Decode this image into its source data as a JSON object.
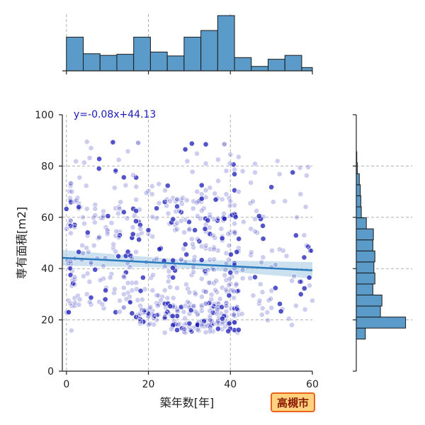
{
  "chart_data": {
    "type": "scatter",
    "xlabel": "築年数[年]",
    "ylabel": "専有面積[m2]",
    "xlim": [
      -1,
      60
    ],
    "ylim": [
      0,
      100
    ],
    "x_ticks": [
      0,
      20,
      40,
      60
    ],
    "y_ticks": [
      0,
      20,
      40,
      60,
      80,
      100
    ],
    "grid": true,
    "regression": {
      "label": "y=-0.08x+44.13",
      "slope": -0.08,
      "intercept": 44.13,
      "x_range": [
        -1,
        60
      ]
    },
    "city_label": "高槻市",
    "x_histogram": {
      "bin_edges": [
        0,
        4.1,
        8.2,
        12.3,
        16.4,
        20.5,
        24.6,
        28.7,
        32.8,
        36.9,
        41.0,
        45.1,
        49.2,
        53.3,
        57.4,
        60
      ],
      "relative_heights": [
        0.61,
        0.31,
        0.28,
        0.3,
        0.61,
        0.34,
        0.27,
        0.61,
        0.73,
        1.0,
        0.24,
        0.08,
        0.21,
        0.28,
        0.06
      ]
    },
    "y_histogram": {
      "bin_edges": [
        12.5,
        16.8,
        21.1,
        25.4,
        29.7,
        34.0,
        38.3,
        42.6,
        46.9,
        51.2,
        55.5,
        59.8,
        64.1,
        68.4,
        72.7,
        77.0,
        81.3,
        85.6,
        89.9
      ],
      "relative_heights": [
        0.18,
        0.98,
        0.48,
        0.51,
        0.33,
        0.37,
        0.35,
        0.37,
        0.33,
        0.34,
        0.2,
        0.1,
        0.09,
        0.08,
        0.06,
        0.02,
        0.01,
        0.0
      ]
    },
    "colors": {
      "points": "#1a1ab8",
      "line": "#2a7bbd",
      "band": "#a9cde5",
      "hist": "#5b9bc9",
      "badge_fill": "#ffd27f",
      "badge_border": "#e8641e"
    },
    "point_clusters": [
      {
        "x": [
          0,
          2
        ],
        "y": [
          15,
          75
        ],
        "n": 40
      },
      {
        "x": [
          2,
          18
        ],
        "y": [
          22,
          68
        ],
        "n": 130
      },
      {
        "x": [
          2,
          18
        ],
        "y": [
          70,
          90
        ],
        "n": 22
      },
      {
        "x": [
          17,
          22
        ],
        "y": [
          18,
          24
        ],
        "n": 25
      },
      {
        "x": [
          18,
          25
        ],
        "y": [
          22,
          75
        ],
        "n": 55
      },
      {
        "x": [
          24,
          42
        ],
        "y": [
          15,
          27
        ],
        "n": 150
      },
      {
        "x": [
          25,
          42
        ],
        "y": [
          28,
          68
        ],
        "n": 170
      },
      {
        "x": [
          28,
          42
        ],
        "y": [
          65,
          90
        ],
        "n": 30
      },
      {
        "x": [
          42,
          60
        ],
        "y": [
          18,
          68
        ],
        "n": 70
      },
      {
        "x": [
          42,
          60
        ],
        "y": [
          68,
          82
        ],
        "n": 12
      }
    ]
  }
}
